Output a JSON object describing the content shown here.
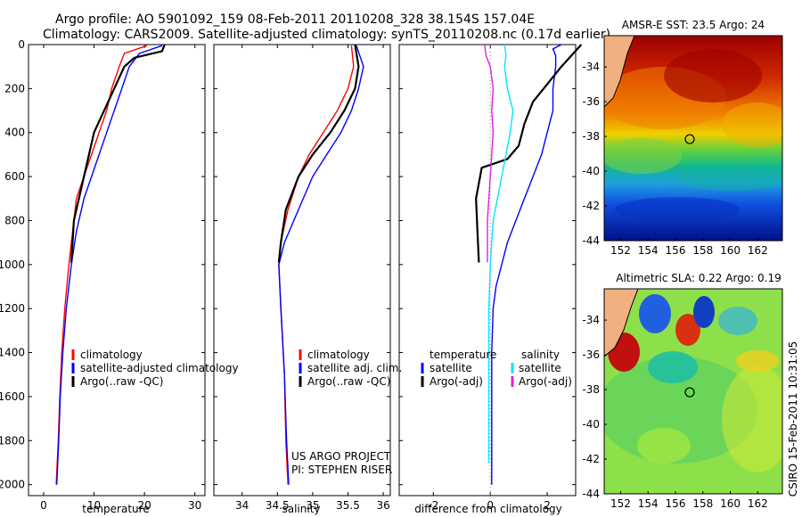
{
  "header": {
    "line1": "Argo profile: AO 5901092_159 08-Feb-2011 20110208_328 38.154S 157.04E",
    "line2": "Climatology: CARS2009. Satellite-adjusted climatology: synTS_20110208.nc (0.17d earlier)"
  },
  "side_stamp": "CSIRO 15-Feb-2011 10:31:05",
  "colors": {
    "red": "#ff0000",
    "blue": "#0000ff",
    "black": "#000000",
    "cyan": "#00e5ff",
    "magenta": "#e020e0"
  },
  "chart_data": [
    {
      "type": "line",
      "name": "temperature-panel",
      "xlabel": "temperature",
      "ylabel": "",
      "xlim": [
        -3,
        32
      ],
      "ylim": [
        2050,
        0
      ],
      "xticks": [
        0,
        10,
        20,
        30
      ],
      "yticks": [
        0,
        200,
        400,
        600,
        800,
        1000,
        1200,
        1400,
        1600,
        1800,
        2000
      ],
      "series": [
        {
          "name": "climatology",
          "color": "red",
          "x": [
            20.5,
            16,
            15,
            13.5,
            12.5,
            11,
            9.5,
            8,
            6.5,
            5,
            4.2,
            3.6,
            3.2,
            2.9,
            2.7,
            2.5
          ],
          "y": [
            5,
            40,
            100,
            200,
            300,
            400,
            500,
            600,
            700,
            1000,
            1200,
            1400,
            1600,
            1800,
            1900,
            2000
          ]
        },
        {
          "name": "satellite-adjusted climatology",
          "color": "blue",
          "x": [
            23.5,
            19,
            17,
            15.5,
            14,
            12.5,
            11,
            9.5,
            8,
            6.5,
            5.5,
            4.5,
            3.8,
            3.3,
            3,
            2.6
          ],
          "y": [
            5,
            40,
            100,
            200,
            300,
            400,
            500,
            600,
            700,
            850,
            1000,
            1200,
            1400,
            1600,
            1800,
            2000
          ]
        },
        {
          "name": "Argo(..raw -QC)",
          "color": "black",
          "x": [
            24,
            23.5,
            18,
            16,
            14,
            12,
            10,
            8,
            6,
            5.5
          ],
          "y": [
            0,
            30,
            60,
            100,
            200,
            300,
            400,
            600,
            800,
            990
          ]
        }
      ],
      "legend": [
        "climatology",
        "satellite-adjusted climatology",
        "Argo(..raw -QC)"
      ]
    },
    {
      "type": "line",
      "name": "salinity-panel",
      "xlabel": "salinity",
      "xlim": [
        33.6,
        36.1
      ],
      "ylim": [
        2050,
        0
      ],
      "xticks": [
        34,
        34.5,
        35,
        35.5,
        36
      ],
      "series": [
        {
          "name": "climatology",
          "color": "red",
          "x": [
            35.55,
            35.58,
            35.5,
            35.35,
            35.15,
            34.95,
            34.8,
            34.65,
            34.55,
            34.52,
            34.55,
            34.6,
            34.62,
            34.65
          ],
          "y": [
            5,
            100,
            200,
            300,
            400,
            500,
            600,
            750,
            900,
            1000,
            1200,
            1500,
            1800,
            2000
          ]
        },
        {
          "name": "satellite adj. clim.",
          "color": "blue",
          "x": [
            35.62,
            35.72,
            35.65,
            35.55,
            35.4,
            35.2,
            35.0,
            34.8,
            34.6,
            34.52,
            34.55,
            34.6,
            34.63,
            34.66
          ],
          "y": [
            5,
            100,
            200,
            300,
            400,
            500,
            600,
            750,
            900,
            1000,
            1200,
            1500,
            1800,
            2000
          ]
        },
        {
          "name": "Argo(..raw -QC)",
          "color": "black",
          "x": [
            35.6,
            35.65,
            35.6,
            35.45,
            35.25,
            35.0,
            34.8,
            34.62,
            34.55,
            34.52
          ],
          "y": [
            0,
            100,
            200,
            300,
            400,
            500,
            600,
            750,
            900,
            990
          ]
        }
      ],
      "legend": [
        "climatology",
        "satellite adj. clim.",
        "Argo(..raw -QC)"
      ],
      "credit": [
        "US ARGO PROJECT",
        "PI: STEPHEN RISER"
      ]
    },
    {
      "type": "line",
      "name": "difference-panel",
      "xlabel": "difference from climatology",
      "xlim": [
        -3.2,
        3
      ],
      "ylim": [
        2050,
        0
      ],
      "xticks": [
        -2,
        0,
        2
      ],
      "series": [
        {
          "name": "temperature satellite",
          "color": "blue",
          "x": [
            2.5,
            2.2,
            2.3,
            2.3,
            2.2,
            2.2,
            2.0,
            1.8,
            1.5,
            1.2,
            0.9,
            0.6,
            0.4,
            0.2,
            0.1,
            0.05,
            0.05,
            0.05,
            0.05
          ],
          "y": [
            0,
            20,
            50,
            100,
            200,
            300,
            400,
            500,
            600,
            700,
            800,
            900,
            1000,
            1100,
            1200,
            1400,
            1600,
            1800,
            2000
          ]
        },
        {
          "name": "temperature Argo(-adj)",
          "color": "black",
          "x": [
            3.2,
            2.5,
            2.0,
            1.5,
            1.2,
            1.0,
            0.6,
            -0.3,
            -0.5,
            -0.45,
            -0.4
          ],
          "y": [
            0,
            100,
            180,
            260,
            360,
            460,
            520,
            560,
            700,
            850,
            990
          ]
        },
        {
          "name": "salinity satellite",
          "color": "cyan",
          "x": [
            0.5,
            0.55,
            0.5,
            0.55,
            0.6,
            0.8,
            0.7,
            0.55,
            0.4,
            0.25,
            0.1,
            0.05,
            0.0,
            -0.05,
            -0.05,
            -0.05
          ],
          "y": [
            0,
            50,
            100,
            150,
            200,
            300,
            400,
            500,
            600,
            700,
            800,
            900,
            1000,
            1200,
            1600,
            1900
          ]
        },
        {
          "name": "salinity Argo(-adj)",
          "color": "magenta",
          "x": [
            -0.2,
            -0.15,
            0.0,
            0.1,
            0.05,
            0.1,
            0.05,
            0.0,
            -0.1,
            -0.1
          ],
          "y": [
            0,
            50,
            100,
            200,
            300,
            400,
            500,
            600,
            800,
            990
          ]
        }
      ],
      "legend_headers": [
        "temperature",
        "salinity"
      ],
      "legend_temperature": [
        "satellite",
        "Argo(-adj)"
      ],
      "legend_salinity": [
        "satellite",
        "Argo(-adj)"
      ]
    },
    {
      "type": "heatmap",
      "name": "sst-map",
      "title": "AMSR-E SST: 23.5 Argo: 24",
      "xlim": [
        150.8,
        163.8
      ],
      "ylim": [
        -44,
        -32.2
      ],
      "xticks": [
        152,
        154,
        156,
        158,
        160,
        162
      ],
      "yticks": [
        -34,
        -36,
        -38,
        -40,
        -42,
        -44
      ],
      "marker": {
        "lon": 157.04,
        "lat": -38.154
      }
    },
    {
      "type": "heatmap",
      "name": "sla-map",
      "title": "Altimetric SLA: 0.22 Argo: 0.19",
      "xlim": [
        150.8,
        163.8
      ],
      "ylim": [
        -44,
        -32.2
      ],
      "xticks": [
        152,
        154,
        156,
        158,
        160,
        162
      ],
      "yticks": [
        -34,
        -36,
        -38,
        -40,
        -42,
        -44
      ],
      "marker": {
        "lon": 157.04,
        "lat": -38.154
      }
    }
  ]
}
